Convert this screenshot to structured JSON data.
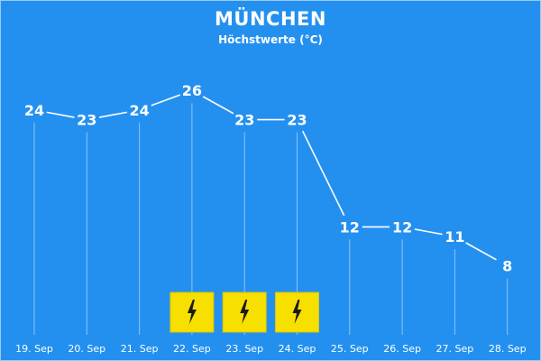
{
  "chart_data": {
    "type": "line",
    "title": "MÜNCHEN",
    "subtitle": "Höchstwerte (°C)",
    "categories": [
      "19. Sep",
      "20. Sep",
      "21. Sep",
      "22. Sep",
      "23. Sep",
      "24. Sep",
      "25. Sep",
      "26. Sep",
      "27. Sep",
      "28. Sep"
    ],
    "values": [
      24,
      23,
      24,
      26,
      23,
      23,
      12,
      12,
      11,
      8
    ],
    "thunderstorm": [
      false,
      false,
      false,
      true,
      true,
      true,
      false,
      false,
      false,
      false
    ],
    "ylim": [
      0,
      30
    ],
    "grid": "vertical-per-day",
    "legend": "none"
  },
  "colors": {
    "background": "#2390f0",
    "line": "#ffffff",
    "gridline": "#8ec4f4",
    "warning_bg": "#f7e000",
    "warning_symbol": "#1a1a1a"
  },
  "icons": {
    "warning": "lightning-bolt-icon"
  }
}
